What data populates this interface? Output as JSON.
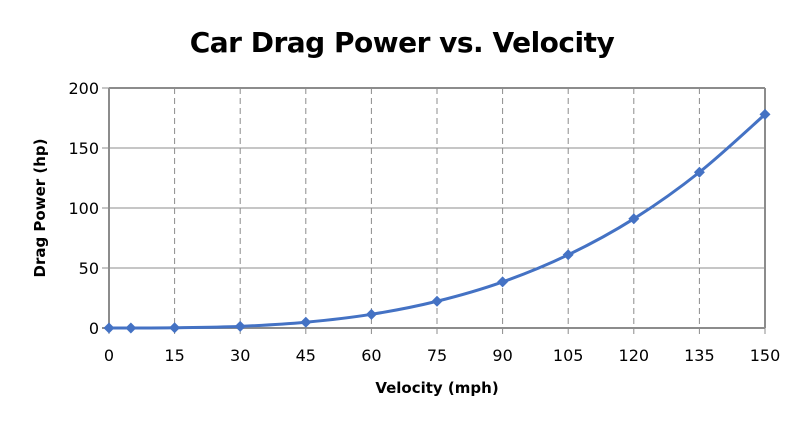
{
  "chart_data": {
    "type": "line",
    "title": "Car Drag Power vs. Velocity",
    "xlabel": "Velocity (mph)",
    "ylabel": "Drag Power (hp)",
    "xlim": [
      0,
      150
    ],
    "ylim": [
      0,
      200
    ],
    "x_ticks": [
      0,
      15,
      30,
      45,
      60,
      75,
      90,
      105,
      120,
      135,
      150
    ],
    "x_tick_labels": [
      "0",
      "15",
      "30",
      "45",
      "60",
      "75",
      "90",
      "105",
      "120",
      "135",
      "150"
    ],
    "y_ticks": [
      0,
      50,
      100,
      150,
      200
    ],
    "y_tick_labels": [
      "0",
      "50",
      "100",
      "150",
      "200"
    ],
    "grid": {
      "horizontal": "solid",
      "vertical": "dashed"
    },
    "legend": "none",
    "series": [
      {
        "name": "Drag Power",
        "color": "#4472C4",
        "marker": "diamond",
        "smooth": true,
        "x": [
          0,
          5,
          15,
          30,
          45,
          60,
          75,
          90,
          105,
          120,
          135,
          150
        ],
        "y": [
          0,
          0.01,
          0.2,
          1.4,
          4.8,
          11.4,
          22.3,
          38.4,
          61,
          91,
          129.8,
          178
        ]
      }
    ]
  }
}
